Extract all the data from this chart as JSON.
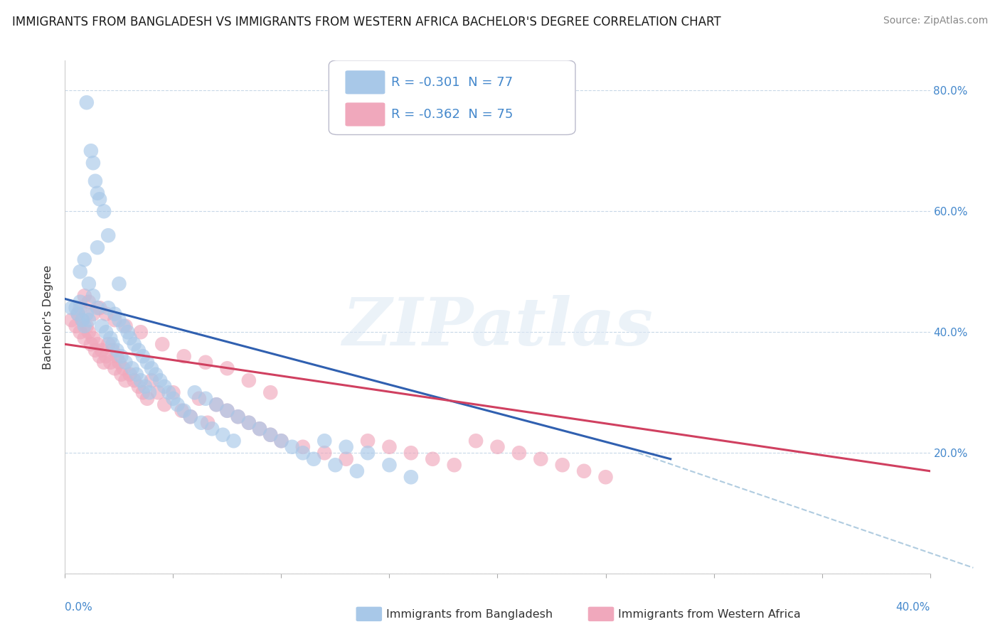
{
  "title": "IMMIGRANTS FROM BANGLADESH VS IMMIGRANTS FROM WESTERN AFRICA BACHELOR'S DEGREE CORRELATION CHART",
  "source": "Source: ZipAtlas.com",
  "ylabel": "Bachelor's Degree",
  "xlim": [
    0.0,
    0.4
  ],
  "ylim": [
    0.0,
    0.85
  ],
  "y_ticks": [
    0.0,
    0.2,
    0.4,
    0.6,
    0.8
  ],
  "y_tick_labels": [
    "",
    "20.0%",
    "40.0%",
    "60.0%",
    "80.0%"
  ],
  "color_blue": "#a8c8e8",
  "color_pink": "#f0a8bc",
  "color_line_blue": "#3060b0",
  "color_line_pink": "#d04060",
  "color_dashed": "#b0cce0",
  "color_tick_labels": "#4488cc",
  "background_color": "#ffffff",
  "grid_color": "#c8d8e8",
  "legend_blue_R": "-0.301",
  "legend_blue_N": "77",
  "legend_pink_R": "-0.362",
  "legend_pink_N": "75",
  "blue_line": [
    0.0,
    0.455,
    0.28,
    0.19
  ],
  "pink_line": [
    0.0,
    0.38,
    0.4,
    0.17
  ],
  "dashed_line": [
    0.265,
    0.2,
    0.42,
    0.01
  ],
  "bangladesh_x": [
    0.003,
    0.005,
    0.006,
    0.007,
    0.008,
    0.009,
    0.01,
    0.01,
    0.011,
    0.012,
    0.013,
    0.014,
    0.015,
    0.015,
    0.016,
    0.017,
    0.018,
    0.019,
    0.02,
    0.021,
    0.022,
    0.023,
    0.024,
    0.025,
    0.026,
    0.027,
    0.028,
    0.029,
    0.03,
    0.031,
    0.032,
    0.033,
    0.034,
    0.035,
    0.036,
    0.037,
    0.038,
    0.039,
    0.04,
    0.042,
    0.044,
    0.046,
    0.048,
    0.05,
    0.052,
    0.055,
    0.058,
    0.06,
    0.063,
    0.065,
    0.068,
    0.07,
    0.073,
    0.075,
    0.078,
    0.08,
    0.085,
    0.09,
    0.095,
    0.1,
    0.105,
    0.11,
    0.115,
    0.12,
    0.125,
    0.13,
    0.135,
    0.14,
    0.15,
    0.16,
    0.007,
    0.009,
    0.011,
    0.013,
    0.015,
    0.02,
    0.025
  ],
  "bangladesh_y": [
    0.44,
    0.44,
    0.43,
    0.45,
    0.42,
    0.41,
    0.43,
    0.78,
    0.42,
    0.7,
    0.68,
    0.65,
    0.63,
    0.44,
    0.62,
    0.41,
    0.6,
    0.4,
    0.44,
    0.39,
    0.38,
    0.43,
    0.37,
    0.42,
    0.36,
    0.41,
    0.35,
    0.4,
    0.39,
    0.34,
    0.38,
    0.33,
    0.37,
    0.32,
    0.36,
    0.31,
    0.35,
    0.3,
    0.34,
    0.33,
    0.32,
    0.31,
    0.3,
    0.29,
    0.28,
    0.27,
    0.26,
    0.3,
    0.25,
    0.29,
    0.24,
    0.28,
    0.23,
    0.27,
    0.22,
    0.26,
    0.25,
    0.24,
    0.23,
    0.22,
    0.21,
    0.2,
    0.19,
    0.22,
    0.18,
    0.21,
    0.17,
    0.2,
    0.18,
    0.16,
    0.5,
    0.52,
    0.48,
    0.46,
    0.54,
    0.56,
    0.48
  ],
  "western_africa_x": [
    0.003,
    0.005,
    0.006,
    0.007,
    0.008,
    0.009,
    0.01,
    0.011,
    0.012,
    0.013,
    0.014,
    0.015,
    0.016,
    0.017,
    0.018,
    0.019,
    0.02,
    0.021,
    0.022,
    0.023,
    0.024,
    0.025,
    0.026,
    0.027,
    0.028,
    0.03,
    0.032,
    0.034,
    0.036,
    0.038,
    0.04,
    0.043,
    0.046,
    0.05,
    0.054,
    0.058,
    0.062,
    0.066,
    0.07,
    0.075,
    0.08,
    0.085,
    0.09,
    0.095,
    0.1,
    0.11,
    0.12,
    0.13,
    0.14,
    0.15,
    0.16,
    0.17,
    0.18,
    0.19,
    0.2,
    0.21,
    0.22,
    0.23,
    0.24,
    0.25,
    0.007,
    0.009,
    0.011,
    0.013,
    0.016,
    0.019,
    0.023,
    0.028,
    0.035,
    0.045,
    0.055,
    0.065,
    0.075,
    0.085,
    0.095
  ],
  "western_africa_y": [
    0.42,
    0.41,
    0.43,
    0.4,
    0.42,
    0.39,
    0.41,
    0.4,
    0.38,
    0.39,
    0.37,
    0.38,
    0.36,
    0.37,
    0.35,
    0.36,
    0.38,
    0.35,
    0.37,
    0.34,
    0.36,
    0.35,
    0.33,
    0.34,
    0.32,
    0.33,
    0.32,
    0.31,
    0.3,
    0.29,
    0.32,
    0.3,
    0.28,
    0.3,
    0.27,
    0.26,
    0.29,
    0.25,
    0.28,
    0.27,
    0.26,
    0.25,
    0.24,
    0.23,
    0.22,
    0.21,
    0.2,
    0.19,
    0.22,
    0.21,
    0.2,
    0.19,
    0.18,
    0.22,
    0.21,
    0.2,
    0.19,
    0.18,
    0.17,
    0.16,
    0.44,
    0.46,
    0.45,
    0.43,
    0.44,
    0.43,
    0.42,
    0.41,
    0.4,
    0.38,
    0.36,
    0.35,
    0.34,
    0.32,
    0.3
  ],
  "watermark_text": "ZIPatlas",
  "bottom_label1": "Immigrants from Bangladesh",
  "bottom_label2": "Immigrants from Western Africa"
}
